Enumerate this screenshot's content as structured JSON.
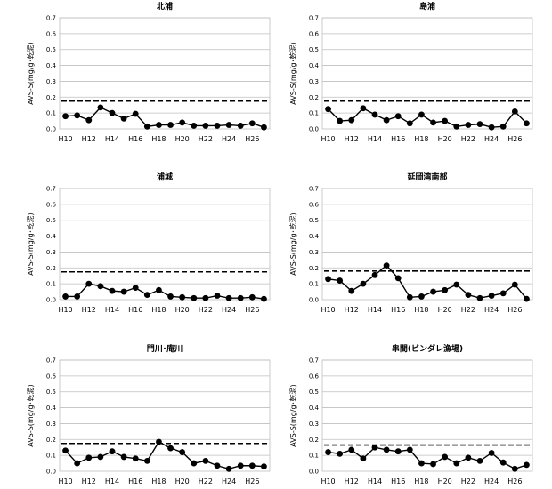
{
  "chart_data": [
    {
      "type": "line",
      "title": "北浦",
      "ylabel": "AVS-S(mg/g･乾泥)",
      "ylim": [
        0,
        0.7
      ],
      "yticks": [
        "0.0",
        "0.1",
        "0.2",
        "0.3",
        "0.4",
        "0.5",
        "0.6",
        "0.7"
      ],
      "x": [
        "H10",
        "H11",
        "H12",
        "H13",
        "H14",
        "H15",
        "H16",
        "H17",
        "H18",
        "H19",
        "H20",
        "H21",
        "H22",
        "H23",
        "H24",
        "H25",
        "H26",
        "H27"
      ],
      "xtick_labels": [
        "H10",
        "H12",
        "H14",
        "H16",
        "H18",
        "H20",
        "H22",
        "H24",
        "H26"
      ],
      "values": [
        0.08,
        0.085,
        0.055,
        0.135,
        0.1,
        0.065,
        0.095,
        0.015,
        0.025,
        0.025,
        0.04,
        0.02,
        0.02,
        0.02,
        0.025,
        0.02,
        0.035,
        0.01
      ],
      "reference": 0.175,
      "grid": true
    },
    {
      "type": "line",
      "title": "島浦",
      "ylabel": "AVS-S(mg/g･乾泥)",
      "ylim": [
        0,
        0.7
      ],
      "yticks": [
        "0.0",
        "0.1",
        "0.2",
        "0.3",
        "0.4",
        "0.5",
        "0.6",
        "0.7"
      ],
      "x": [
        "H10",
        "H11",
        "H12",
        "H13",
        "H14",
        "H15",
        "H16",
        "H17",
        "H18",
        "H19",
        "H20",
        "H21",
        "H22",
        "H23",
        "H24",
        "H25",
        "H26",
        "H27"
      ],
      "xtick_labels": [
        "H10",
        "H12",
        "H14",
        "H16",
        "H18",
        "H20",
        "H22",
        "H24",
        "H26"
      ],
      "values": [
        0.125,
        0.05,
        0.055,
        0.13,
        0.09,
        0.055,
        0.08,
        0.035,
        0.09,
        0.04,
        0.05,
        0.015,
        0.025,
        0.03,
        0.01,
        0.015,
        0.11,
        0.035
      ],
      "reference": 0.175,
      "grid": true
    },
    {
      "type": "line",
      "title": "浦城",
      "ylabel": "AVS-S(mg/g･乾泥)",
      "ylim": [
        0,
        0.7
      ],
      "yticks": [
        "0.0",
        "0.1",
        "0.2",
        "0.3",
        "0.4",
        "0.5",
        "0.6",
        "0.7"
      ],
      "x": [
        "H10",
        "H11",
        "H12",
        "H13",
        "H14",
        "H15",
        "H16",
        "H17",
        "H18",
        "H19",
        "H20",
        "H21",
        "H22",
        "H23",
        "H24",
        "H25",
        "H26",
        "H27"
      ],
      "xtick_labels": [
        "H10",
        "H12",
        "H14",
        "H16",
        "H18",
        "H20",
        "H22",
        "H24",
        "H26"
      ],
      "values": [
        0.02,
        0.02,
        0.1,
        0.085,
        0.055,
        0.05,
        0.075,
        0.03,
        0.06,
        0.02,
        0.015,
        0.01,
        0.01,
        0.025,
        0.01,
        0.01,
        0.015,
        0.005
      ],
      "reference": 0.175,
      "grid": true
    },
    {
      "type": "line",
      "title": "延岡湾南部",
      "ylabel": "AVS-S(mg/g･乾泥)",
      "ylim": [
        0,
        0.7
      ],
      "yticks": [
        "0.0",
        "0.1",
        "0.2",
        "0.3",
        "0.4",
        "0.5",
        "0.6",
        "0.7"
      ],
      "x": [
        "H10",
        "H11",
        "H12",
        "H13",
        "H14",
        "H15",
        "H16",
        "H17",
        "H18",
        "H19",
        "H20",
        "H21",
        "H22",
        "H23",
        "H24",
        "H25",
        "H26",
        "H27"
      ],
      "xtick_labels": [
        "H10",
        "H12",
        "H14",
        "H16",
        "H18",
        "H20",
        "H22",
        "H24",
        "H26"
      ],
      "values": [
        0.13,
        0.12,
        0.055,
        0.1,
        0.155,
        0.215,
        0.135,
        0.015,
        0.02,
        0.05,
        0.06,
        0.095,
        0.03,
        0.01,
        0.025,
        0.04,
        0.095,
        0.005
      ],
      "reference": 0.18,
      "grid": true
    },
    {
      "type": "line",
      "title": "門川･庵川",
      "ylabel": "AVS-S(mg/g･乾泥)",
      "ylim": [
        0,
        0.7
      ],
      "yticks": [
        "0.0",
        "0.1",
        "0.2",
        "0.3",
        "0.4",
        "0.5",
        "0.6",
        "0.7"
      ],
      "x": [
        "H10",
        "H11",
        "H12",
        "H13",
        "H14",
        "H15",
        "H16",
        "H17",
        "H18",
        "H19",
        "H20",
        "H21",
        "H22",
        "H23",
        "H24",
        "H25",
        "H26",
        "H27"
      ],
      "xtick_labels": [
        "H10",
        "H12",
        "H14",
        "H16",
        "H18",
        "H20",
        "H22",
        "H24",
        "H26"
      ],
      "values": [
        0.13,
        0.05,
        0.085,
        0.09,
        0.125,
        0.09,
        0.08,
        0.065,
        0.185,
        0.145,
        0.12,
        0.05,
        0.065,
        0.035,
        0.015,
        0.035,
        0.035,
        0.03
      ],
      "reference": 0.175,
      "grid": true
    },
    {
      "type": "line",
      "title": "串間(ビンダレ漁場)",
      "ylabel": "AVS-S(mg/g･乾泥)",
      "ylim": [
        0,
        0.7
      ],
      "yticks": [
        "0.0",
        "0.1",
        "0.2",
        "0.3",
        "0.4",
        "0.5",
        "0.6",
        "0.7"
      ],
      "x": [
        "H10",
        "H11",
        "H12",
        "H13",
        "H14",
        "H15",
        "H16",
        "H17",
        "H18",
        "H19",
        "H20",
        "H21",
        "H22",
        "H23",
        "H24",
        "H25",
        "H26",
        "H27"
      ],
      "xtick_labels": [
        "H10",
        "H12",
        "H14",
        "H16",
        "H18",
        "H20",
        "H22",
        "H24",
        "H26"
      ],
      "values": [
        0.12,
        0.11,
        0.135,
        0.08,
        0.15,
        0.135,
        0.125,
        0.135,
        0.05,
        0.045,
        0.09,
        0.05,
        0.085,
        0.065,
        0.115,
        0.055,
        0.015,
        0.04
      ],
      "reference": 0.165,
      "grid": true
    }
  ]
}
